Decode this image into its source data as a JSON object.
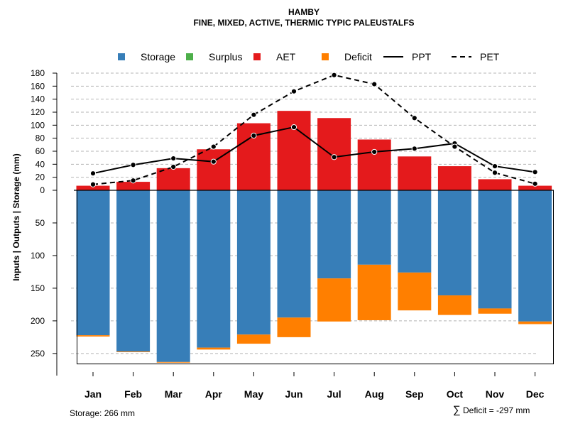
{
  "chart_data": {
    "type": "bar",
    "title": "HAMBY",
    "subtitle": "FINE, MIXED, ACTIVE, THERMIC TYPIC PALEUSTALFS",
    "ylabel": "Inputs | Outputs | Storage    (mm)",
    "categories": [
      "Jan",
      "Feb",
      "Mar",
      "Apr",
      "May",
      "Jun",
      "Jul",
      "Aug",
      "Sep",
      "Oct",
      "Nov",
      "Dec"
    ],
    "upper_axis": {
      "ylim": [
        0,
        180
      ],
      "ticks": [
        "0",
        "20",
        "40",
        "60",
        "80",
        "100",
        "120",
        "140",
        "160",
        "180"
      ]
    },
    "lower_axis": {
      "ylim": [
        0,
        266
      ],
      "ticks": [
        "50",
        "100",
        "150",
        "200",
        "250"
      ]
    },
    "series": [
      {
        "name": "Storage",
        "color": "#377EB8",
        "values": [
          222,
          247,
          263,
          241,
          221,
          195,
          135,
          114,
          126,
          161,
          181,
          201
        ]
      },
      {
        "name": "Surplus",
        "color": "#4DAF4A",
        "values": [
          0,
          0,
          0,
          0,
          0,
          0,
          0,
          0,
          0,
          0,
          0,
          0
        ]
      },
      {
        "name": "AET",
        "color": "#E41A1C",
        "values": [
          7,
          13,
          34,
          63,
          103,
          122,
          111,
          78,
          52,
          37,
          17,
          7
        ]
      },
      {
        "name": "Deficit",
        "color": "#FF7F00",
        "values": [
          2,
          1,
          1,
          3,
          14,
          30,
          66,
          85,
          58,
          30,
          8,
          4
        ]
      },
      {
        "name": "PPT",
        "style": "solid",
        "values": [
          26,
          39,
          49,
          44,
          84,
          97,
          51,
          59,
          64,
          72,
          37,
          28
        ]
      },
      {
        "name": "PET",
        "style": "dashed",
        "values": [
          9,
          15,
          36,
          67,
          116,
          152,
          177,
          163,
          111,
          67,
          27,
          10
        ]
      }
    ],
    "legend_position": "top",
    "grid": true,
    "storage_label": "Storage: 266 mm",
    "deficit_label": "Deficit = -297 mm",
    "sum_symbol": "∑"
  }
}
